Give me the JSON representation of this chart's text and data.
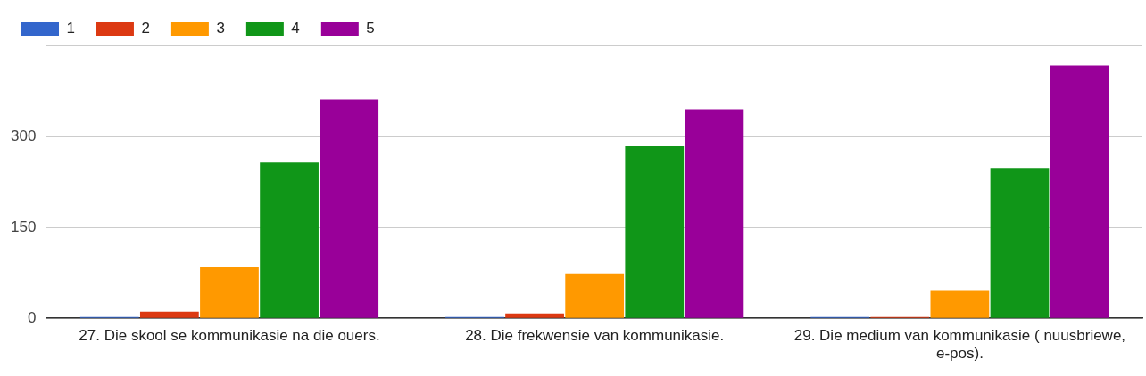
{
  "chart_data": {
    "type": "bar",
    "categories": [
      "27. Die skool se kommunikasie na die ouers.",
      "28. Die frekwensie van kommunikasie.",
      "29. Die medium van kommunikasie ( nuusbriewe, e-pos)."
    ],
    "series": [
      {
        "name": "1",
        "color": "#3366cc",
        "values": [
          2,
          2,
          2
        ]
      },
      {
        "name": "2",
        "color": "#dc3912",
        "values": [
          11,
          8,
          2
        ]
      },
      {
        "name": "3",
        "color": "#ff9900",
        "values": [
          84,
          74,
          45
        ]
      },
      {
        "name": "4",
        "color": "#109618",
        "values": [
          257,
          284,
          247
        ]
      },
      {
        "name": "5",
        "color": "#990099",
        "values": [
          361,
          345,
          417
        ]
      }
    ],
    "ylim": [
      0,
      450
    ],
    "yticks": [
      0,
      150,
      300,
      {
        "value": 450,
        "label": null
      }
    ],
    "grid": "y",
    "legend": "top left"
  }
}
